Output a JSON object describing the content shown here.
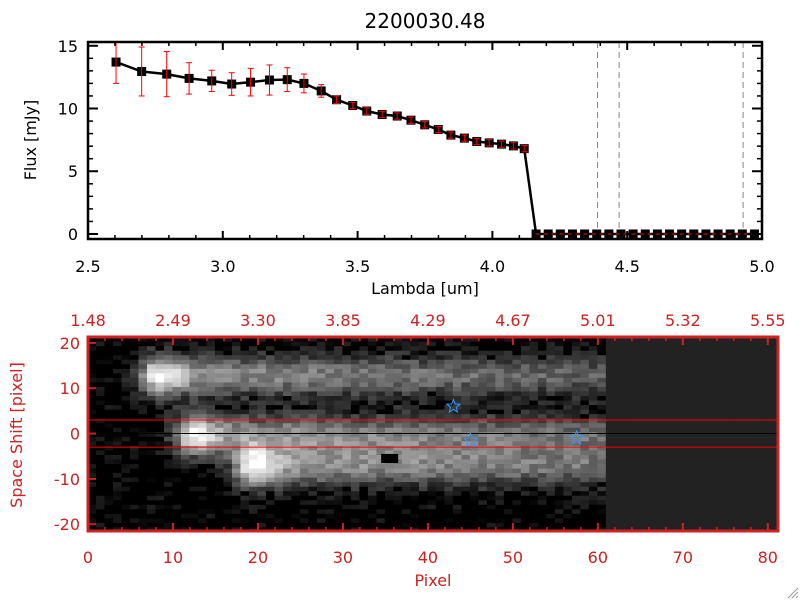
{
  "chart_data": [
    {
      "type": "line",
      "title": "2200030.48",
      "xlabel": "Lambda [um]",
      "ylabel": "Flux [mJy]",
      "xlim": [
        2.5,
        5.0
      ],
      "ylim": [
        -0.4,
        15.3
      ],
      "xticks": [
        "2.5",
        "3.0",
        "3.5",
        "4.0",
        "4.5",
        "5.0"
      ],
      "xtick_values": [
        2.5,
        3.0,
        3.5,
        4.0,
        4.5,
        5.0
      ],
      "yticks": [
        "0",
        "5",
        "10",
        "15"
      ],
      "ytick_values": [
        0,
        5,
        10,
        15
      ],
      "grid": false,
      "series": [
        {
          "x": [
            2.604,
            2.699,
            2.792,
            2.875,
            2.959,
            3.033,
            3.103,
            3.173,
            3.239,
            3.301,
            3.365,
            3.422,
            3.482,
            3.534,
            3.591,
            3.647,
            3.698,
            3.749,
            3.799,
            3.846,
            3.896,
            3.942,
            3.988,
            4.034,
            4.078,
            4.118,
            4.162,
            4.207,
            4.252,
            4.297,
            4.342,
            4.387,
            4.432,
            4.477,
            4.522,
            4.567,
            4.612,
            4.657,
            4.702,
            4.747,
            4.792,
            4.837,
            4.882,
            4.927,
            4.972
          ],
          "y": [
            13.7,
            12.95,
            12.74,
            12.4,
            12.2,
            11.95,
            12.1,
            12.27,
            12.3,
            12.0,
            11.4,
            10.7,
            10.24,
            9.8,
            9.52,
            9.4,
            9.07,
            8.7,
            8.33,
            7.88,
            7.64,
            7.37,
            7.26,
            7.16,
            7.02,
            6.8,
            0,
            0,
            0,
            0,
            0,
            0,
            0,
            0,
            0,
            0,
            0,
            0,
            0,
            0,
            0,
            0,
            0,
            0,
            0
          ],
          "yerr": [
            1.7,
            1.95,
            1.8,
            1.25,
            0.85,
            0.9,
            1.1,
            1.2,
            0.95,
            0.75,
            0.5,
            0.3,
            0.25,
            0.25,
            0.25,
            0.25,
            0.25,
            0.25,
            0.25,
            0.25,
            0.25,
            0.25,
            0.25,
            0.25,
            0.25,
            0.25,
            0,
            0,
            0,
            0,
            0,
            0,
            0,
            0,
            0,
            0,
            0,
            0,
            0,
            0,
            0,
            0,
            0,
            0,
            0
          ],
          "line_color": "#000000",
          "marker": "square",
          "error_color": "#ff0000"
        }
      ],
      "vlines": [
        {
          "x": 4.39,
          "color": "#3399ff",
          "style": "dashed"
        },
        {
          "x": 4.47,
          "color": "#888888",
          "style": "dashed"
        },
        {
          "x": 4.93,
          "color": "#888888",
          "style": "dashed"
        }
      ],
      "hline_zero": {
        "y": 0,
        "color": "#ff0000",
        "style": "dashed",
        "from_x": 4.16
      }
    },
    {
      "type": "heatmap",
      "colormap": "grayscale",
      "xlabel": "Pixel",
      "ylabel": "Space Shift [pixel]",
      "xlim": [
        0,
        81.2
      ],
      "ylim": [
        -21.5,
        21.3
      ],
      "xticks": [
        "0",
        "10",
        "20",
        "30",
        "40",
        "50",
        "60",
        "70",
        "80"
      ],
      "xtick_values": [
        0,
        10,
        20,
        30,
        40,
        50,
        60,
        70,
        80
      ],
      "top_xticks": [
        "1.48",
        "2.49",
        "3.30",
        "3.85",
        "4.29",
        "4.67",
        "5.01",
        "5.32",
        "5.55"
      ],
      "yticks": [
        "20",
        "10",
        "0",
        "-10",
        "-20"
      ],
      "ytick_values": [
        20,
        10,
        0,
        -10,
        -20
      ],
      "axis_color": "#cc2222",
      "hlines": [
        {
          "y": 3,
          "color": "#ff0000"
        },
        {
          "y": 0,
          "color": "#000000"
        },
        {
          "y": -3,
          "color": "#ff0000"
        }
      ],
      "stars": [
        {
          "x": 43,
          "y": 6,
          "color": "#3399ff"
        },
        {
          "x": 45,
          "y": -1.5,
          "color": "#3399ff"
        },
        {
          "x": 57.5,
          "y": -1,
          "color": "#3399ff"
        }
      ],
      "traces": [
        {
          "y": 13,
          "start_x": 8
        },
        {
          "y": 0,
          "start_x": 12
        },
        {
          "y": -7,
          "start_x": 19
        }
      ],
      "data_end_x": 61
    }
  ]
}
